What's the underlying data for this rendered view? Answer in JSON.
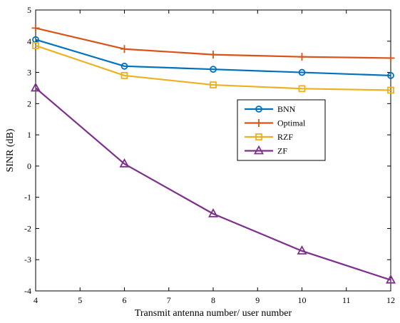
{
  "chart_data": {
    "type": "line",
    "title": "",
    "xlabel": "Transmit antenna number/ user number",
    "ylabel": "SINR (dB)",
    "xlim": [
      4,
      12
    ],
    "ylim": [
      -4,
      5
    ],
    "x_ticks": [
      "4",
      "5",
      "6",
      "7",
      "8",
      "9",
      "10",
      "11",
      "12"
    ],
    "y_ticks": [
      "-4",
      "-3",
      "-2",
      "-1",
      "0",
      "1",
      "2",
      "3",
      "4",
      "5"
    ],
    "grid": false,
    "legend_position": "center-right",
    "x": [
      4,
      6,
      8,
      10,
      12
    ],
    "series": [
      {
        "name": "BNN",
        "values": [
          4.05,
          3.2,
          3.1,
          3.0,
          2.9
        ],
        "color": "#0072BD",
        "marker": "circle"
      },
      {
        "name": "Optimal",
        "values": [
          4.42,
          3.75,
          3.57,
          3.5,
          3.46
        ],
        "color": "#D95319",
        "marker": "plus"
      },
      {
        "name": "RZF",
        "values": [
          3.86,
          2.9,
          2.6,
          2.48,
          2.43
        ],
        "color": "#EDB120",
        "marker": "square"
      },
      {
        "name": "ZF",
        "values": [
          2.5,
          0.07,
          -1.53,
          -2.72,
          -3.65
        ],
        "color": "#7E2F8E",
        "marker": "triangle"
      }
    ]
  }
}
